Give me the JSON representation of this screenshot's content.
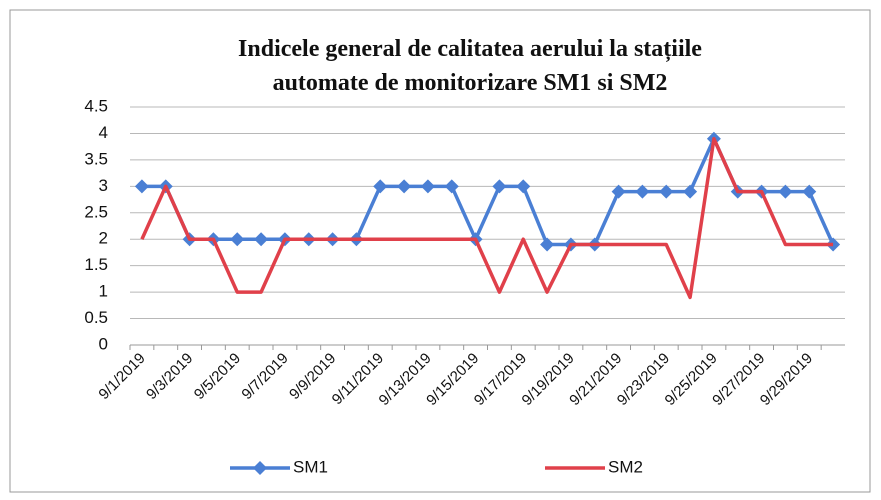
{
  "chart_data": {
    "type": "line",
    "title": [
      "Indicele general de calitatea aerului la stațiile",
      "automate de monitorizare SM1 si SM2"
    ],
    "categories": [
      "9/1/2019",
      null,
      "9/3/2019",
      null,
      "9/5/2019",
      null,
      "9/7/2019",
      null,
      "9/9/2019",
      null,
      "9/11/2019",
      null,
      "9/13/2019",
      null,
      "9/15/2019",
      null,
      "9/17/2019",
      null,
      "9/19/2019",
      null,
      "9/21/2019",
      null,
      "9/23/2019",
      null,
      "9/25/2019",
      null,
      "9/27/2019",
      null,
      "9/29/2019",
      null
    ],
    "series": [
      {
        "name": "SM1",
        "color": "#4a7fd4",
        "values": [
          3,
          3,
          2,
          2,
          2,
          2,
          2,
          2,
          2,
          2,
          3,
          3,
          3,
          3,
          2,
          3,
          3,
          1.9,
          1.9,
          1.9,
          2.9,
          2.9,
          2.9,
          2.9,
          3.9,
          2.9,
          2.9,
          2.9,
          2.9,
          1.9
        ]
      },
      {
        "name": "SM2",
        "color": "#e0404a",
        "values": [
          2,
          3,
          2,
          2,
          1,
          1,
          2,
          2,
          2,
          2,
          2,
          2,
          2,
          2,
          2,
          1,
          2,
          1,
          1.9,
          1.9,
          1.9,
          1.9,
          1.9,
          0.9,
          3.9,
          2.9,
          2.9,
          1.9,
          1.9,
          1.9
        ]
      }
    ],
    "ylim": [
      0,
      4.5
    ],
    "yticks": [
      0,
      0.5,
      1,
      1.5,
      2,
      2.5,
      3,
      3.5,
      4,
      4.5
    ],
    "grid": true,
    "legend": "bottom"
  }
}
